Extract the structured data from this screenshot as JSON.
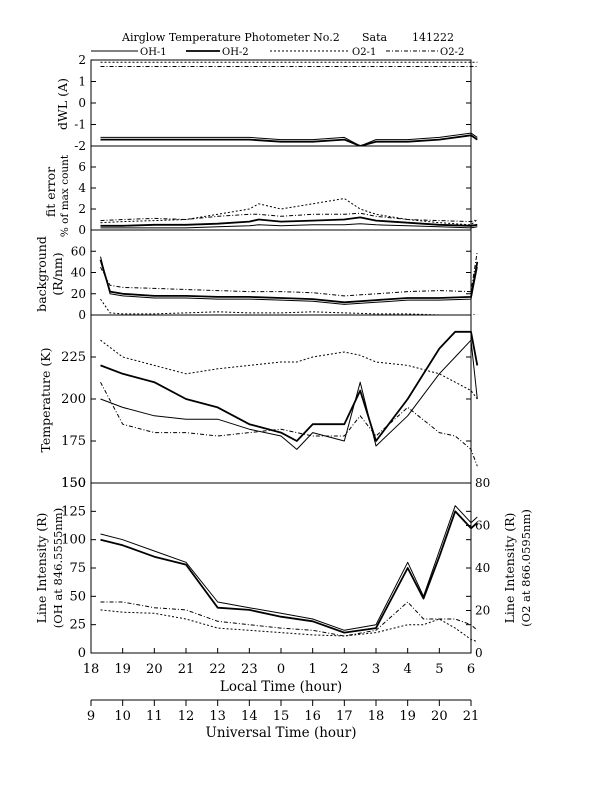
{
  "header": {
    "title": "Airglow Temperature Photometer No.2",
    "site": "Sata",
    "date": "141222"
  },
  "legend": [
    "OH-1",
    "OH-2",
    "O2-1",
    "O2-2"
  ],
  "colors": {
    "ink": "#000000",
    "background": "#ffffff"
  },
  "chart_data": [
    {
      "type": "line",
      "panel": "dWL",
      "ylabel": "dWL (A)",
      "ylim": [
        -2,
        2
      ],
      "yticks": [
        -2,
        -1,
        0,
        1,
        2
      ],
      "x": [
        18.3,
        19,
        20,
        21,
        22,
        23,
        24,
        25,
        26,
        26.5,
        27,
        28,
        29,
        30,
        30.2
      ],
      "series": [
        {
          "name": "OH-1",
          "values": [
            -1.6,
            -1.6,
            -1.6,
            -1.6,
            -1.6,
            -1.6,
            -1.7,
            -1.7,
            -1.6,
            -2.0,
            -1.7,
            -1.7,
            -1.6,
            -1.4,
            -1.6
          ]
        },
        {
          "name": "OH-2",
          "values": [
            -1.7,
            -1.7,
            -1.7,
            -1.7,
            -1.7,
            -1.7,
            -1.8,
            -1.8,
            -1.7,
            -2.0,
            -1.8,
            -1.8,
            -1.7,
            -1.5,
            -1.7
          ]
        },
        {
          "name": "O2-1",
          "values": [
            1.9,
            1.9,
            1.9,
            1.9,
            1.9,
            1.9,
            1.9,
            1.9,
            1.9,
            1.9,
            1.9,
            1.9,
            1.9,
            1.9,
            1.9
          ]
        },
        {
          "name": "O2-2",
          "values": [
            1.7,
            1.7,
            1.7,
            1.7,
            1.7,
            1.7,
            1.7,
            1.7,
            1.7,
            1.7,
            1.7,
            1.7,
            1.7,
            1.7,
            1.7
          ]
        }
      ]
    },
    {
      "type": "line",
      "panel": "fit error",
      "ylabel": "fit error",
      "ylabel2": "% of max count",
      "ylim": [
        0,
        8
      ],
      "yticks": [
        0,
        2,
        4,
        6
      ],
      "x": [
        18.3,
        19,
        20,
        21,
        22,
        23,
        23.3,
        24,
        25,
        26,
        26.5,
        27,
        28,
        29,
        30,
        30.2
      ],
      "series": [
        {
          "name": "OH-1",
          "values": [
            0.2,
            0.2,
            0.2,
            0.2,
            0.3,
            0.4,
            0.5,
            0.4,
            0.5,
            0.5,
            0.6,
            0.5,
            0.4,
            0.3,
            0.2,
            0.3
          ]
        },
        {
          "name": "OH-2",
          "values": [
            0.4,
            0.4,
            0.5,
            0.5,
            0.6,
            0.8,
            1.0,
            0.8,
            0.9,
            1.0,
            1.2,
            0.9,
            0.7,
            0.5,
            0.4,
            0.5
          ]
        },
        {
          "name": "O2-1",
          "values": [
            0.7,
            0.8,
            0.9,
            1.0,
            1.5,
            2.0,
            2.5,
            2.0,
            2.5,
            3.0,
            2.0,
            1.5,
            1.0,
            0.7,
            0.5,
            1.0
          ]
        },
        {
          "name": "O2-2",
          "values": [
            0.9,
            1.0,
            1.1,
            1.0,
            1.3,
            1.5,
            1.5,
            1.3,
            1.5,
            1.5,
            1.6,
            1.3,
            1.0,
            0.9,
            0.8,
            1.0
          ]
        }
      ]
    },
    {
      "type": "line",
      "panel": "background",
      "ylabel": "background",
      "ylabel2": "(R/nm)",
      "ylim": [
        0,
        80
      ],
      "yticks": [
        0,
        20,
        40,
        60
      ],
      "x": [
        18.3,
        18.6,
        19,
        20,
        21,
        22,
        23,
        24,
        25,
        26,
        27,
        28,
        29,
        30,
        30.2
      ],
      "series": [
        {
          "name": "OH-1",
          "values": [
            55,
            20,
            18,
            16,
            16,
            15,
            15,
            14,
            13,
            10,
            12,
            14,
            14,
            15,
            45
          ]
        },
        {
          "name": "OH-2",
          "values": [
            52,
            22,
            20,
            18,
            18,
            17,
            17,
            16,
            15,
            12,
            14,
            16,
            16,
            17,
            50
          ]
        },
        {
          "name": "O2-1",
          "values": [
            15,
            2,
            1,
            1,
            2,
            3,
            2,
            2,
            3,
            2,
            1,
            1,
            0,
            0,
            0
          ]
        },
        {
          "name": "O2-2",
          "values": [
            45,
            28,
            26,
            25,
            24,
            23,
            22,
            22,
            21,
            18,
            20,
            22,
            23,
            22,
            60
          ]
        }
      ]
    },
    {
      "type": "line",
      "panel": "temperature",
      "ylabel": "Temperature (K)",
      "ylim": [
        150,
        250
      ],
      "yticks": [
        150,
        175,
        200,
        225
      ],
      "x": [
        18.3,
        19,
        20,
        21,
        22,
        23,
        24,
        24.5,
        25,
        26,
        26.5,
        27,
        28,
        29,
        29.5,
        30,
        30.2
      ],
      "series": [
        {
          "name": "OH-1",
          "values": [
            200,
            195,
            190,
            188,
            188,
            182,
            178,
            170,
            180,
            175,
            210,
            172,
            190,
            215,
            225,
            235,
            200
          ]
        },
        {
          "name": "OH-2",
          "values": [
            220,
            215,
            210,
            200,
            195,
            185,
            180,
            175,
            185,
            185,
            205,
            175,
            200,
            230,
            240,
            240,
            220
          ]
        },
        {
          "name": "O2-1",
          "values": [
            235,
            225,
            220,
            215,
            218,
            220,
            222,
            222,
            225,
            228,
            226,
            222,
            220,
            215,
            210,
            205,
            200
          ]
        },
        {
          "name": "O2-2",
          "values": [
            210,
            185,
            180,
            180,
            178,
            180,
            182,
            180,
            178,
            178,
            190,
            178,
            195,
            180,
            178,
            170,
            160
          ]
        }
      ]
    },
    {
      "type": "line",
      "panel": "line intensity",
      "ylabel": "Line Intensity (R)",
      "ylabel2": "(OH at 846.5555nm)",
      "ylim": [
        0,
        150
      ],
      "yticks": [
        0,
        25,
        50,
        75,
        100,
        125,
        150
      ],
      "ylabel_right": "Line Intensity (R)",
      "ylabel_right2": "(O2 at 866.0595nm)",
      "ylim_right": [
        0,
        80
      ],
      "yticks_right": [
        0,
        20,
        40,
        60,
        80
      ],
      "x": [
        18.3,
        19,
        20,
        21,
        22,
        23,
        24,
        25,
        26,
        27,
        28,
        28.5,
        29,
        29.5,
        30,
        30.2
      ],
      "series": [
        {
          "name": "OH-1",
          "values": [
            105,
            100,
            90,
            80,
            45,
            40,
            35,
            30,
            20,
            25,
            80,
            50,
            90,
            130,
            115,
            120
          ]
        },
        {
          "name": "OH-2",
          "values": [
            100,
            95,
            85,
            78,
            40,
            38,
            32,
            28,
            18,
            22,
            75,
            48,
            85,
            125,
            110,
            115
          ]
        },
        {
          "name": "O2-1",
          "values": [
            38,
            36,
            35,
            30,
            22,
            20,
            18,
            16,
            15,
            18,
            25,
            25,
            30,
            22,
            12,
            10
          ]
        },
        {
          "name": "O2-2",
          "values": [
            45,
            45,
            40,
            38,
            28,
            25,
            22,
            20,
            15,
            20,
            45,
            30,
            30,
            30,
            25,
            20
          ]
        }
      ]
    }
  ],
  "axes": {
    "local_time": {
      "label": "Local Time (hour)",
      "ticks": [
        "18",
        "19",
        "20",
        "21",
        "22",
        "23",
        "0",
        "1",
        "2",
        "3",
        "4",
        "5",
        "6"
      ]
    },
    "universal_time": {
      "label": "Universal Time (hour)",
      "ticks": [
        "9",
        "10",
        "11",
        "12",
        "13",
        "14",
        "15",
        "16",
        "17",
        "18",
        "19",
        "20",
        "21"
      ]
    }
  }
}
